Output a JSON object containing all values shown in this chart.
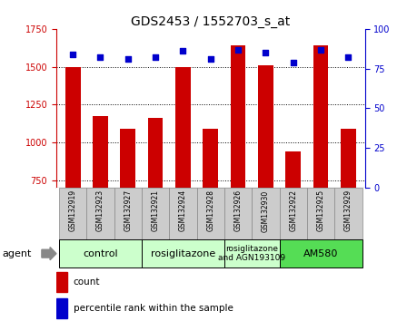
{
  "title": "GDS2453 / 1552703_s_at",
  "samples": [
    "GSM132919",
    "GSM132923",
    "GSM132927",
    "GSM132921",
    "GSM132924",
    "GSM132928",
    "GSM132926",
    "GSM132930",
    "GSM132922",
    "GSM132925",
    "GSM132929"
  ],
  "counts": [
    1500,
    1175,
    1090,
    1160,
    1500,
    1090,
    1640,
    1510,
    940,
    1640,
    1090
  ],
  "percentiles": [
    84,
    82,
    81,
    82,
    86,
    81,
    87,
    85,
    79,
    87,
    82
  ],
  "bar_color": "#cc0000",
  "dot_color": "#0000cc",
  "ylim_left": [
    700,
    1750
  ],
  "ylim_right": [
    0,
    100
  ],
  "yticks_left": [
    750,
    1000,
    1250,
    1500,
    1750
  ],
  "yticks_right": [
    0,
    25,
    50,
    75,
    100
  ],
  "group_labels": [
    "control",
    "rosiglitazone",
    "rosiglitazone\nand AGN193109",
    "AM580"
  ],
  "group_starts": [
    0,
    3,
    6,
    8
  ],
  "group_ends": [
    3,
    6,
    8,
    11
  ],
  "group_colors": [
    "#ccffcc",
    "#ccffcc",
    "#ccffcc",
    "#55dd55"
  ],
  "group_label_fontsizes": [
    8,
    8,
    6.5,
    8
  ],
  "agent_label": "agent",
  "legend_count_label": "count",
  "legend_pct_label": "percentile rank within the sample",
  "sample_box_color": "#cccccc",
  "sample_box_edgecolor": "#888888",
  "title_fontsize": 10,
  "tick_fontsize": 7,
  "bar_width": 0.55
}
